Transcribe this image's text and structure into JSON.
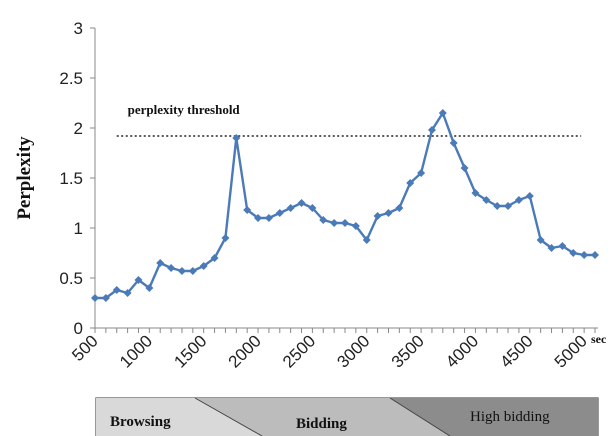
{
  "chart_data": {
    "type": "line",
    "ylabel": "Perplexity",
    "x_unit": "sec",
    "ylim": [
      0,
      3
    ],
    "yticks": [
      0,
      0.5,
      1,
      1.5,
      2,
      2.5,
      3
    ],
    "ytick_labels": [
      "0",
      "0.5",
      "1",
      "1.5",
      "2",
      "2.5",
      "3"
    ],
    "xlim": [
      500,
      5100
    ],
    "xticks": [
      500,
      1000,
      1500,
      2000,
      2500,
      3000,
      3500,
      4000,
      4500,
      5000
    ],
    "xtick_labels": [
      "500",
      "1000",
      "1500",
      "2000",
      "2500",
      "3000",
      "3500",
      "4000",
      "4500",
      "5000"
    ],
    "grid": false,
    "series": [
      {
        "color": "#4a7ab8",
        "marker": "diamond",
        "x": [
          500,
          600,
          700,
          800,
          900,
          1000,
          1100,
          1200,
          1300,
          1400,
          1500,
          1600,
          1700,
          1800,
          1900,
          2000,
          2100,
          2200,
          2300,
          2400,
          2500,
          2600,
          2700,
          2800,
          2900,
          3000,
          3100,
          3200,
          3300,
          3400,
          3500,
          3600,
          3700,
          3800,
          3900,
          4000,
          4100,
          4200,
          4300,
          4400,
          4500,
          4600,
          4700,
          4800,
          4900,
          5000,
          5100
        ],
        "y": [
          0.3,
          0.3,
          0.38,
          0.35,
          0.48,
          0.4,
          0.65,
          0.6,
          0.57,
          0.57,
          0.62,
          0.7,
          0.9,
          1.9,
          1.18,
          1.1,
          1.1,
          1.15,
          1.2,
          1.25,
          1.2,
          1.08,
          1.05,
          1.05,
          1.02,
          0.88,
          1.12,
          1.15,
          1.2,
          1.45,
          1.55,
          1.98,
          2.15,
          1.85,
          1.6,
          1.35,
          1.28,
          1.22,
          1.22,
          1.28,
          1.32,
          0.88,
          0.8,
          0.82,
          0.75,
          0.73,
          0.73
        ]
      }
    ],
    "threshold": {
      "label": "perplexity threshold",
      "value": 1.92,
      "style": "dotted"
    },
    "phases": [
      {
        "label": "Browsing",
        "color": "#d9d9d9"
      },
      {
        "label": "Bidding",
        "color": "#bcbcbc"
      },
      {
        "label": "High bidding",
        "color": "#8c8c8c"
      }
    ]
  }
}
